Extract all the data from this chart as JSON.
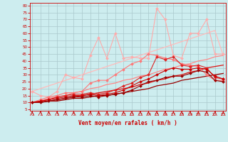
{
  "background_color": "#cdedef",
  "grid_color": "#aac8cc",
  "text_color": "#cc0000",
  "xlabel": "Vent moyen/en rafales ( km/h )",
  "x_ticks": [
    0,
    1,
    2,
    3,
    4,
    5,
    6,
    7,
    8,
    9,
    10,
    11,
    12,
    13,
    14,
    15,
    16,
    17,
    18,
    19,
    20,
    21,
    22,
    23
  ],
  "y_ticks": [
    5,
    10,
    15,
    20,
    25,
    30,
    35,
    40,
    45,
    50,
    55,
    60,
    65,
    70,
    75,
    80
  ],
  "ylim": [
    4,
    82
  ],
  "xlim": [
    -0.3,
    23.3
  ],
  "series": [
    {
      "color": "#ffaaaa",
      "lw": 0.8,
      "marker": "D",
      "markersize": 2.0,
      "y": [
        18,
        15,
        14,
        18,
        30,
        28,
        27,
        44,
        57,
        42,
        60,
        42,
        43,
        42,
        42,
        78,
        70,
        44,
        42,
        60,
        60,
        70,
        45,
        45
      ]
    },
    {
      "color": "#ff7777",
      "lw": 0.8,
      "marker": "D",
      "markersize": 2.0,
      "y": [
        10,
        12,
        14,
        15,
        17,
        17,
        18,
        24,
        26,
        26,
        30,
        34,
        38,
        40,
        45,
        44,
        42,
        41,
        38,
        37,
        36,
        30,
        26,
        26
      ]
    },
    {
      "color": "#dd2222",
      "lw": 0.8,
      "marker": "D",
      "markersize": 2.0,
      "y": [
        10,
        11,
        12,
        14,
        15,
        16,
        16,
        17,
        16,
        17,
        19,
        22,
        24,
        28,
        30,
        43,
        41,
        43,
        37,
        36,
        37,
        35,
        28,
        27
      ]
    },
    {
      "color": "#cc0000",
      "lw": 0.8,
      "marker": "D",
      "markersize": 2.0,
      "y": [
        10,
        11,
        12,
        13,
        14,
        15,
        15,
        16,
        15,
        16,
        17,
        19,
        22,
        25,
        27,
        30,
        33,
        35,
        34,
        34,
        35,
        34,
        29,
        27
      ]
    },
    {
      "color": "#990000",
      "lw": 0.8,
      "marker": "D",
      "markersize": 2.0,
      "y": [
        10,
        10,
        11,
        12,
        13,
        14,
        14,
        15,
        14,
        15,
        16,
        17,
        19,
        22,
        25,
        26,
        28,
        29,
        29,
        31,
        33,
        32,
        26,
        25
      ]
    },
    {
      "color": "#ffbbbb",
      "lw": 0.9,
      "marker": null,
      "y": [
        18,
        20,
        22,
        24,
        26,
        28,
        30,
        32,
        34,
        36,
        38,
        40,
        42,
        44,
        46,
        48,
        50,
        52,
        54,
        56,
        58,
        60,
        62,
        44
      ]
    },
    {
      "color": "#ff8888",
      "lw": 0.9,
      "marker": null,
      "y": [
        10,
        11,
        13,
        14,
        15,
        17,
        18,
        20,
        21,
        23,
        24,
        26,
        27,
        29,
        30,
        32,
        34,
        35,
        37,
        38,
        40,
        41,
        43,
        44
      ]
    },
    {
      "color": "#dd1111",
      "lw": 0.9,
      "marker": null,
      "y": [
        10,
        10.5,
        11,
        12,
        13,
        14,
        15,
        16,
        17,
        18,
        19,
        20,
        21,
        23,
        24,
        26,
        27,
        29,
        30,
        32,
        33,
        35,
        36,
        37
      ]
    },
    {
      "color": "#990000",
      "lw": 0.9,
      "marker": null,
      "y": [
        10,
        10,
        11,
        11,
        12,
        13,
        13,
        14,
        15,
        15,
        16,
        17,
        18,
        19,
        20,
        22,
        23,
        24,
        26,
        27,
        28,
        29,
        30,
        31
      ]
    }
  ]
}
